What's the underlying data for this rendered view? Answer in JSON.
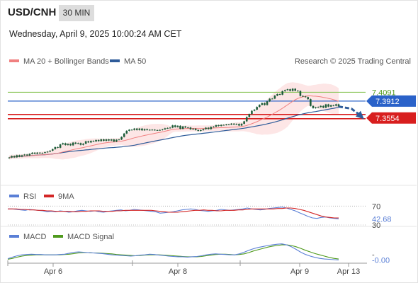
{
  "header": {
    "symbol": "USD/CNH",
    "interval": "30 MIN",
    "timestamp": "Wednesday, April 9, 2025 10:00:24 AM CET"
  },
  "colors": {
    "ma20": "#f08080",
    "ma50": "#2e5b99",
    "band_fill": "#fde0e0",
    "candle": "#1e5d3a",
    "resistance_line": "#2a62c9",
    "support_line": "#d81e1e",
    "threshold_line": "#8cc65a",
    "rsi": "#5a7fd6",
    "rsi_ma": "#d32626",
    "macd": "#5a7fd6",
    "macd_signal": "#4f9a1d"
  },
  "chart_data": [
    {
      "type": "candlestick",
      "legend": {
        "position": "top-left",
        "entries": [
          "MA 20 + Bollinger Bands",
          "MA 50"
        ]
      },
      "credit": "Research © 2025 Trading Central",
      "x_ticks": [
        "Apr 6",
        "Apr 8",
        "Apr 9",
        "Apr 13"
      ],
      "ylim": [
        7.22,
        7.46
      ],
      "levels": [
        {
          "label": "7.4091",
          "value": 7.4091,
          "role": "threshold"
        },
        {
          "label": "7.3912",
          "value": 7.3912,
          "role": "resistance"
        },
        {
          "label": "7.3554",
          "value": 7.3554,
          "role": "support"
        }
      ],
      "forecast": "down",
      "closes": [
        7.2765,
        7.2795,
        7.277,
        7.2812,
        7.2783,
        7.2811,
        7.2826,
        7.2807,
        7.284,
        7.2863,
        7.2843,
        7.2864,
        7.285,
        7.2858,
        7.2875,
        7.2885,
        7.2904,
        7.2936,
        7.2977,
        7.2964,
        7.3033,
        7.3056,
        7.3019,
        7.3042,
        7.3013,
        7.3068,
        7.3046,
        7.3058,
        7.3023,
        7.3046,
        7.3095,
        7.3072,
        7.3102,
        7.3093,
        7.3121,
        7.3099,
        7.3135,
        7.3105,
        7.3134,
        7.3111,
        7.3133,
        7.309,
        7.3127,
        7.3132,
        7.3184,
        7.3253,
        7.3308,
        7.3331,
        7.3326,
        7.3354,
        7.3324,
        7.3353,
        7.3318,
        7.3343,
        7.3324,
        7.333,
        7.3331,
        7.3322,
        7.332,
        7.3326,
        7.3337,
        7.3359,
        7.3365,
        7.3373,
        7.3419,
        7.3385,
        7.341,
        7.3348,
        7.3397,
        7.3376,
        7.3375,
        7.3339,
        7.3352,
        7.3324,
        7.3306,
        7.3322,
        7.3342,
        7.3371,
        7.3343,
        7.3387,
        7.3392,
        7.3423,
        7.3407,
        7.3428,
        7.3428,
        7.3438,
        7.3435,
        7.3453,
        7.3436,
        7.3447,
        7.3415,
        7.3451,
        7.3501,
        7.3589,
        7.3647,
        7.3715,
        7.3738,
        7.3793,
        7.3836,
        7.3871,
        7.3833,
        7.3905,
        7.396,
        7.3962,
        7.4023,
        7.4054,
        7.4042,
        7.4114,
        7.4135,
        7.4152,
        7.4119,
        7.4163,
        7.4123,
        7.4117,
        7.4017,
        7.4007,
        7.3992,
        7.3951,
        7.3813,
        7.377,
        7.3785,
        7.3791,
        7.3814,
        7.3779,
        7.3845,
        7.38,
        7.3828,
        7.3817,
        7.3847,
        7.3801
      ]
    },
    {
      "type": "line",
      "legend": {
        "position": "top-left"
      },
      "ylim": [
        30,
        75
      ],
      "levels": [
        {
          "label": "70",
          "value": 70
        },
        {
          "label": "42.68",
          "value": 42.68
        },
        {
          "label": "30",
          "value": 30
        }
      ],
      "series": [
        {
          "name": "RSI",
          "values": [
            64,
            64,
            63,
            62,
            61,
            63,
            62,
            61,
            60,
            58,
            59,
            58,
            60,
            59,
            57,
            58,
            60,
            61,
            60,
            59,
            60,
            58,
            57,
            59,
            60,
            61,
            62,
            60,
            61,
            63,
            62,
            61,
            60,
            59,
            58,
            55,
            56,
            57,
            58,
            60,
            62,
            63,
            64,
            63,
            61,
            60,
            59,
            60,
            61,
            63,
            62,
            61,
            62,
            63,
            64,
            66,
            64,
            63,
            62,
            63,
            65,
            66,
            67,
            68,
            66,
            63,
            60,
            56,
            52,
            48,
            45,
            44,
            46,
            47,
            45,
            44,
            43
          ]
        },
        {
          "name": "9MA",
          "values": [
            64,
            64,
            64,
            63,
            63,
            62,
            62,
            61,
            61,
            60,
            60,
            59,
            59,
            59,
            59,
            58,
            58,
            59,
            59,
            60,
            60,
            60,
            59,
            59,
            59,
            60,
            60,
            61,
            61,
            61,
            61,
            61,
            61,
            61,
            60,
            59,
            58,
            57,
            57,
            57,
            58,
            59,
            60,
            61,
            61,
            62,
            61,
            61,
            60,
            60,
            61,
            61,
            61,
            62,
            62,
            63,
            64,
            64,
            64,
            64,
            64,
            64,
            65,
            65,
            66,
            66,
            65,
            63,
            61,
            58,
            55,
            52,
            49,
            47,
            46,
            45,
            45
          ]
        }
      ]
    },
    {
      "type": "line",
      "legend": {
        "position": "top-left"
      },
      "ylim": [
        -0.01,
        0.056
      ],
      "levels": [
        {
          "label": "-",
          "value": 0.0
        },
        {
          "label": "-0.00",
          "value": -0.0005
        }
      ],
      "series": [
        {
          "name": "MACD",
          "values": [
            0.004,
            0.009,
            0.013,
            0.016,
            0.017,
            0.018,
            0.017,
            0.017,
            0.016,
            0.016,
            0.016,
            0.017,
            0.018,
            0.021,
            0.024,
            0.025,
            0.024,
            0.023,
            0.022,
            0.021,
            0.02,
            0.018,
            0.016,
            0.015,
            0.014,
            0.013,
            0.012,
            0.013,
            0.015,
            0.016,
            0.018,
            0.017,
            0.015,
            0.014,
            0.012,
            0.011,
            0.01,
            0.01,
            0.009,
            0.01,
            0.011,
            0.013,
            0.016,
            0.018,
            0.019,
            0.018,
            0.017,
            0.016,
            0.016,
            0.019,
            0.024,
            0.03,
            0.035,
            0.039,
            0.042,
            0.045,
            0.047,
            0.049,
            0.05,
            0.047,
            0.041,
            0.033,
            0.024,
            0.017,
            0.012,
            0.008,
            0.005,
            0.003,
            0.002,
            0.001,
            0.0
          ]
        },
        {
          "name": "MACD Signal",
          "values": [
            0.002,
            0.005,
            0.009,
            0.012,
            0.014,
            0.015,
            0.016,
            0.016,
            0.016,
            0.016,
            0.016,
            0.016,
            0.017,
            0.018,
            0.02,
            0.022,
            0.023,
            0.023,
            0.022,
            0.022,
            0.021,
            0.02,
            0.019,
            0.017,
            0.016,
            0.015,
            0.014,
            0.013,
            0.014,
            0.015,
            0.016,
            0.016,
            0.016,
            0.015,
            0.014,
            0.013,
            0.012,
            0.011,
            0.01,
            0.01,
            0.01,
            0.011,
            0.013,
            0.015,
            0.017,
            0.018,
            0.018,
            0.017,
            0.016,
            0.017,
            0.019,
            0.023,
            0.028,
            0.032,
            0.036,
            0.04,
            0.043,
            0.045,
            0.047,
            0.047,
            0.045,
            0.041,
            0.036,
            0.03,
            0.025,
            0.02,
            0.016,
            0.012,
            0.008,
            0.005,
            0.003
          ]
        }
      ]
    }
  ]
}
